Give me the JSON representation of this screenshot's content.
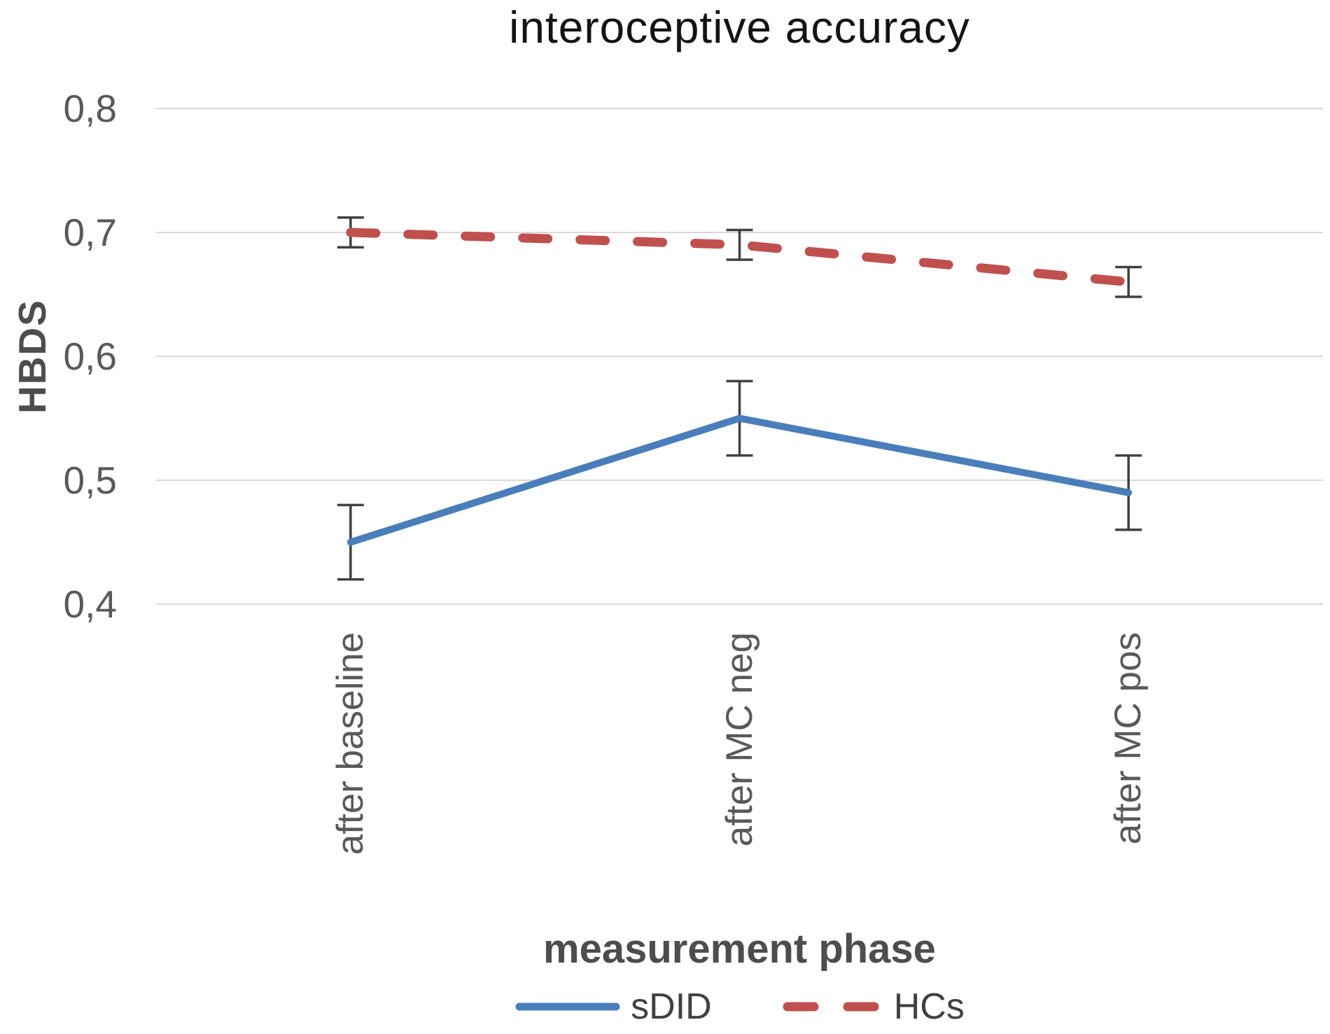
{
  "chart": {
    "title": "interoceptive accuracy"
  },
  "chart_data": {
    "type": "line",
    "title": "interoceptive accuracy",
    "xlabel": "measurement phase",
    "ylabel": "HBDS",
    "categories": [
      "after baseline",
      "after MC neg",
      "after MC pos"
    ],
    "series": [
      {
        "name": "sDID",
        "values": [
          0.45,
          0.55,
          0.49
        ],
        "errors": [
          0.03,
          0.03,
          0.03
        ],
        "color": "#4a7ebb",
        "style": "solid"
      },
      {
        "name": "HCs",
        "values": [
          0.7,
          0.69,
          0.66
        ],
        "errors": [
          0.012,
          0.012,
          0.012
        ],
        "color": "#c0504d",
        "style": "dashed"
      }
    ],
    "ylim": [
      0.4,
      0.8
    ],
    "yticks": [
      0.8,
      0.7,
      0.6,
      0.5,
      0.4
    ],
    "ytick_labels": [
      "0,8",
      "0,7",
      "0,6",
      "0,5",
      "0,4"
    ],
    "decimal_separator": "comma",
    "grid": true,
    "gridline_color": "#d9d9d9",
    "error_bar_color": "#404040",
    "legend_position": "bottom",
    "legend_entries": [
      "sDID",
      "HCs"
    ]
  }
}
